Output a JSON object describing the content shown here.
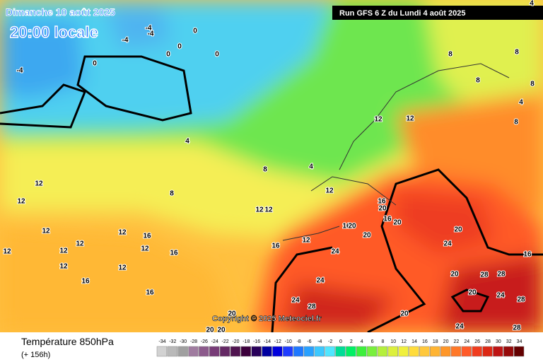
{
  "header": {
    "date": "Dimanche 10 août 2025",
    "time": "20:00 locale",
    "run": "Run GFS 6 Z du Lundi 4 août 2025"
  },
  "map": {
    "copyright": "Copyright © 2025 Meteociel.fr",
    "contour_labels": [
      "-4",
      "-4",
      "-4",
      "0",
      "0",
      "0",
      "0",
      "0",
      "-4",
      "4",
      "4",
      "8",
      "8",
      "12",
      "12",
      "12",
      "12",
      "16",
      "12",
      "12",
      "12",
      "16",
      "12",
      "12",
      "12",
      "16",
      "16",
      "12",
      "12",
      "12",
      "16",
      "20",
      "16",
      "16",
      "20",
      "20",
      "20",
      "16",
      "12",
      "24",
      "20",
      "24",
      "16",
      "24",
      "24",
      "28",
      "20",
      "28",
      "28",
      "20",
      "24",
      "28",
      "20",
      "24",
      "28",
      "20",
      "20",
      "20",
      "8",
      "8",
      "8",
      "12",
      "12",
      "8",
      "8",
      "4",
      "4"
    ]
  },
  "legend": {
    "title": "Température 850hPa",
    "subtitle": "(+ 156h)",
    "labels": [
      "-34",
      "-32",
      "-30",
      "-28",
      "-26",
      "-24",
      "-22",
      "-20",
      "-18",
      "-16",
      "-14",
      "-12",
      "-10",
      "-8",
      "-6",
      "-4",
      "-2",
      "0",
      "2",
      "4",
      "6",
      "8",
      "10",
      "12",
      "14",
      "16",
      "18",
      "20",
      "22",
      "24",
      "26",
      "28",
      "30",
      "32",
      "34"
    ],
    "colors": [
      "#d2d2d2",
      "#b9b9b9",
      "#a0a0a0",
      "#a07ca0",
      "#8c5a8c",
      "#783c78",
      "#642864",
      "#501450",
      "#3c003c",
      "#28005a",
      "#0000a0",
      "#0000dc",
      "#1e3cff",
      "#1e78ff",
      "#28a0ff",
      "#3cc8ff",
      "#50e6ff",
      "#00dc96",
      "#00f064",
      "#3cf03c",
      "#78f03c",
      "#b4f03c",
      "#dcf03c",
      "#f0f03c",
      "#ffdc3c",
      "#ffc83c",
      "#ffb432",
      "#ff9628",
      "#ff7828",
      "#ff5a28",
      "#f03c1e",
      "#dc2814",
      "#be1414",
      "#960a0a",
      "#640000"
    ]
  }
}
